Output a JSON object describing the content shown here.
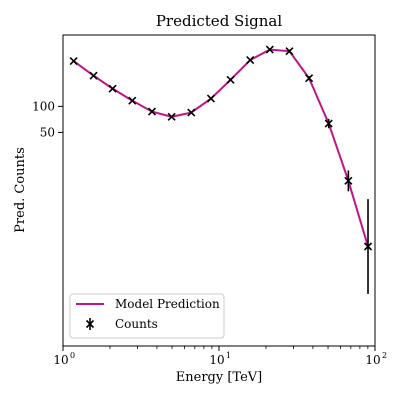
{
  "chart_data": {
    "type": "line",
    "title": "Predicted Signal",
    "xlabel": "Energy [TeV]",
    "ylabel": "Pred. Counts",
    "x_scale": "log",
    "xlim": [
      1,
      100
    ],
    "ylim": [
      -360,
      237
    ],
    "x_ticks": [
      {
        "value": 1,
        "label": "10",
        "exp": "0"
      },
      {
        "value": 10,
        "label": "10",
        "exp": "1"
      },
      {
        "value": 100,
        "label": "10",
        "exp": "2"
      }
    ],
    "y_ticks": [
      {
        "value": 100,
        "label": "100"
      },
      {
        "value": 50,
        "label": "50"
      }
    ],
    "grid": false,
    "legend_position": "bottom-left",
    "series": [
      {
        "name": "Model Prediction",
        "kind": "line",
        "color": "#c0138a",
        "x": [
          1.17,
          1.57,
          2.08,
          2.78,
          3.72,
          4.97,
          6.64,
          8.88,
          11.86,
          15.85,
          21.17,
          28.29,
          37.8,
          50.5,
          67.5,
          90.2
        ],
        "y": [
          187,
          159,
          134,
          111,
          90,
          80,
          88,
          115,
          151,
          189,
          209,
          206,
          154,
          67,
          -43,
          -169
        ]
      },
      {
        "name": "Counts",
        "kind": "errorbar",
        "color": "#000000",
        "x": [
          1.17,
          1.57,
          2.08,
          2.78,
          3.72,
          4.97,
          6.64,
          8.88,
          11.86,
          15.85,
          21.17,
          28.29,
          37.8,
          50.5,
          67.5,
          90.2
        ],
        "y": [
          187,
          159,
          134,
          111,
          90,
          80,
          88,
          115,
          151,
          189,
          209,
          206,
          154,
          67,
          -43,
          -169
        ],
        "yerr": [
          2,
          2,
          2,
          2,
          2,
          2,
          2,
          2,
          2,
          2,
          2,
          3,
          4,
          9,
          20,
          91
        ]
      }
    ]
  }
}
